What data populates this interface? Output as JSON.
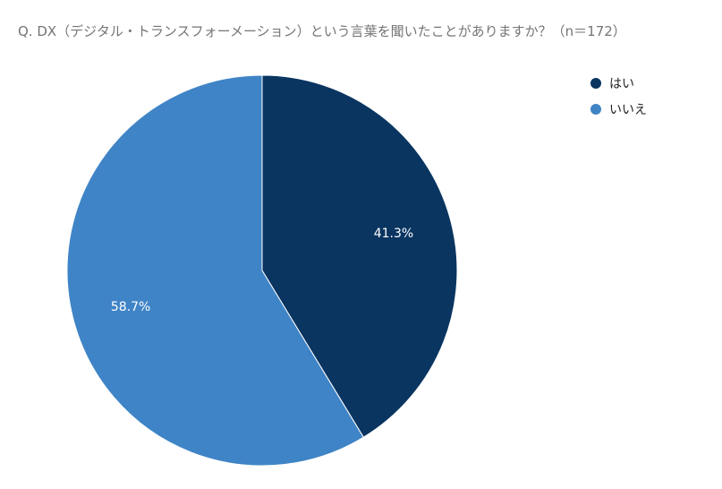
{
  "chart_data": {
    "type": "pie",
    "title": "Q. DX（デジタル・トランスフォーメーション）という言葉を聞いたことがありますか？（n＝172）",
    "categories": [
      "はい",
      "いいえ"
    ],
    "values": [
      41.3,
      58.7
    ],
    "labels": [
      "41.3%",
      "58.7%"
    ],
    "colors": [
      "#0a3561",
      "#3f84c6"
    ],
    "start_angle": "12 o'clock",
    "direction": "clockwise",
    "legend": "top-right"
  }
}
